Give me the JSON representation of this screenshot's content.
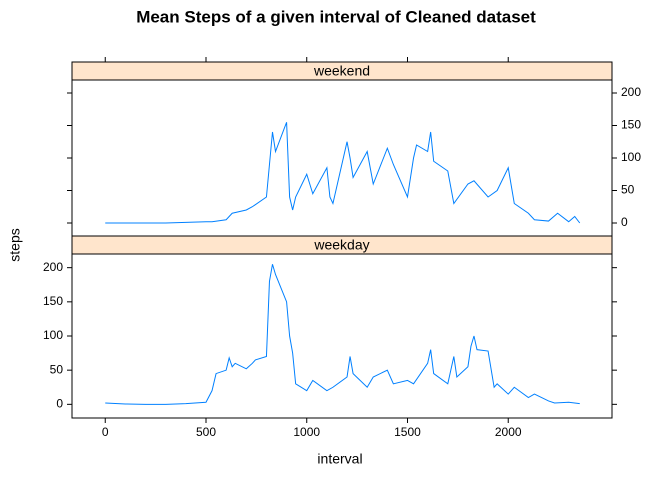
{
  "chart_data": {
    "type": "line",
    "title": "Mean Steps of a given interval of Cleaned dataset",
    "x_label": "interval",
    "y_label": "steps",
    "color": "#0080ff",
    "strip_color": "#ffe5cc",
    "xlim": [
      -165,
      2515
    ],
    "xticks": [
      0,
      500,
      1000,
      1500,
      2000
    ],
    "ylim": [
      -20,
      220
    ],
    "yticks": [
      0,
      50,
      100,
      150,
      200
    ],
    "panels": [
      {
        "name": "weekend",
        "x": [
          0,
          100,
          200,
          300,
          400,
          500,
          530,
          600,
          630,
          700,
          730,
          800,
          815,
          830,
          845,
          900,
          915,
          930,
          945,
          1000,
          1030,
          1100,
          1115,
          1130,
          1200,
          1215,
          1230,
          1300,
          1330,
          1400,
          1430,
          1500,
          1530,
          1545,
          1600,
          1615,
          1630,
          1700,
          1730,
          1800,
          1830,
          1900,
          1945,
          2000,
          2030,
          2100,
          2130,
          2200,
          2245,
          2300,
          2330,
          2355
        ],
        "values": [
          0,
          0,
          0,
          0,
          1,
          2,
          2,
          5,
          15,
          20,
          25,
          40,
          90,
          140,
          110,
          155,
          40,
          20,
          40,
          75,
          45,
          85,
          40,
          30,
          125,
          100,
          70,
          110,
          60,
          115,
          90,
          40,
          100,
          120,
          110,
          140,
          95,
          80,
          30,
          60,
          65,
          40,
          50,
          85,
          30,
          15,
          5,
          3,
          15,
          2,
          10,
          0
        ]
      },
      {
        "name": "weekday",
        "x": [
          0,
          100,
          200,
          300,
          400,
          500,
          530,
          550,
          600,
          615,
          630,
          645,
          700,
          730,
          745,
          800,
          815,
          830,
          845,
          900,
          915,
          930,
          945,
          1000,
          1030,
          1100,
          1130,
          1200,
          1215,
          1230,
          1300,
          1330,
          1400,
          1430,
          1500,
          1530,
          1600,
          1615,
          1630,
          1700,
          1730,
          1745,
          1800,
          1815,
          1830,
          1845,
          1900,
          1930,
          1945,
          2000,
          2030,
          2100,
          2130,
          2200,
          2230,
          2300,
          2355
        ],
        "values": [
          2,
          0.5,
          0,
          0,
          1,
          3,
          20,
          45,
          50,
          68,
          55,
          60,
          52,
          60,
          65,
          70,
          180,
          205,
          190,
          150,
          100,
          75,
          30,
          20,
          35,
          20,
          25,
          40,
          70,
          45,
          25,
          40,
          50,
          30,
          35,
          30,
          60,
          80,
          45,
          30,
          70,
          40,
          55,
          85,
          100,
          80,
          78,
          25,
          30,
          15,
          25,
          10,
          15,
          5,
          2,
          3,
          1
        ]
      }
    ]
  }
}
